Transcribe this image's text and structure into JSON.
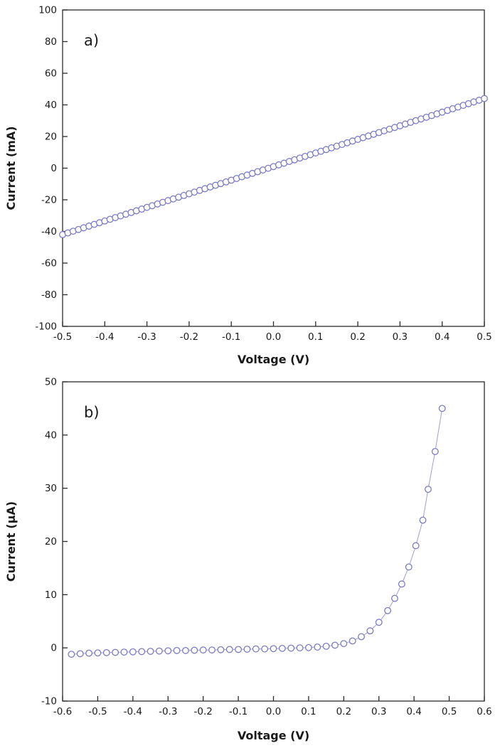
{
  "page": {
    "background": "#ffffff"
  },
  "chart_data": [
    {
      "id": "chart-a",
      "type": "scatter",
      "panel_label": "a)",
      "xlabel": "Voltage (V)",
      "ylabel": "Current (mA)",
      "xlim": [
        -0.5,
        0.5
      ],
      "ylim": [
        -100,
        100
      ],
      "grid": false,
      "legend": "none",
      "axis_color": "#2b2b2b",
      "text_color": "#1a1a1a",
      "marker_color": "#7b7bc4",
      "line_color": "#9e9ed6",
      "xticks": [
        -0.5,
        -0.4,
        -0.3,
        -0.2,
        -0.1,
        0,
        0.1,
        0.2,
        0.3,
        0.4,
        0.5
      ],
      "xtick_labels": [
        "-0.5",
        "-0.4",
        "-0.3",
        "-0.2",
        "-0.1",
        "0.0",
        "0.1",
        "0.2",
        "0.3",
        "0.4",
        "0.5"
      ],
      "yticks": [
        -100,
        -80,
        -60,
        -40,
        -20,
        0,
        20,
        40,
        60,
        80,
        100
      ],
      "ytick_labels": [
        "-100",
        "-80",
        "-60",
        "-40",
        "-20",
        "0",
        "20",
        "40",
        "60",
        "80",
        "100"
      ],
      "x": [
        -0.5,
        -0.4875,
        -0.475,
        -0.4625,
        -0.45,
        -0.4375,
        -0.425,
        -0.4125,
        -0.4,
        -0.3875,
        -0.375,
        -0.3625,
        -0.35,
        -0.3375,
        -0.325,
        -0.3125,
        -0.3,
        -0.2875,
        -0.275,
        -0.2625,
        -0.25,
        -0.2375,
        -0.225,
        -0.2125,
        -0.2,
        -0.1875,
        -0.175,
        -0.1625,
        -0.15,
        -0.1375,
        -0.125,
        -0.1125,
        -0.1,
        -0.0875,
        -0.075,
        -0.0625,
        -0.05,
        -0.0375,
        -0.025,
        -0.0125,
        0,
        0.0125,
        0.025,
        0.0375,
        0.05,
        0.0625,
        0.075,
        0.0875,
        0.1,
        0.1125,
        0.125,
        0.1375,
        0.15,
        0.1625,
        0.175,
        0.1875,
        0.2,
        0.2125,
        0.225,
        0.2375,
        0.25,
        0.2625,
        0.275,
        0.2875,
        0.3,
        0.3125,
        0.325,
        0.3375,
        0.35,
        0.3625,
        0.375,
        0.3875,
        0.4,
        0.4125,
        0.425,
        0.4375,
        0.45,
        0.4625,
        0.475,
        0.4875,
        0.5
      ],
      "y": [
        -42,
        -40.93,
        -39.85,
        -38.78,
        -37.7,
        -36.63,
        -35.55,
        -34.48,
        -33.4,
        -32.33,
        -31.25,
        -30.18,
        -29.1,
        -28.03,
        -26.95,
        -25.88,
        -24.8,
        -23.73,
        -22.65,
        -21.58,
        -20.5,
        -19.43,
        -18.35,
        -17.28,
        -16.2,
        -15.13,
        -14.05,
        -12.98,
        -11.9,
        -10.83,
        -9.75,
        -8.68,
        -7.6,
        -6.53,
        -5.45,
        -4.38,
        -3.3,
        -2.23,
        -1.15,
        -0.08,
        1,
        2.08,
        3.15,
        4.23,
        5.3,
        6.38,
        7.45,
        8.53,
        9.6,
        10.68,
        11.75,
        12.83,
        13.9,
        14.98,
        16.05,
        17.13,
        18.2,
        19.28,
        20.35,
        21.43,
        22.5,
        23.58,
        24.65,
        25.73,
        26.8,
        27.88,
        28.95,
        30.03,
        31.1,
        32.18,
        33.25,
        34.33,
        35.4,
        36.48,
        37.55,
        38.63,
        39.7,
        40.78,
        41.85,
        42.93,
        44
      ]
    },
    {
      "id": "chart-b",
      "type": "scatter",
      "panel_label": "b)",
      "xlabel": "Voltage (V)",
      "ylabel": "Current (µA)",
      "xlim": [
        -0.6,
        0.6
      ],
      "ylim": [
        -10,
        50
      ],
      "grid": false,
      "legend": "none",
      "axis_color": "#2b2b2b",
      "text_color": "#1a1a1a",
      "marker_color": "#7b7bc4",
      "line_color": "#9e9ed6",
      "xticks": [
        -0.6,
        -0.5,
        -0.4,
        -0.3,
        -0.2,
        -0.1,
        0,
        0.1,
        0.2,
        0.3,
        0.4,
        0.5,
        0.6
      ],
      "xtick_labels": [
        "-0.6",
        "-0.5",
        "-0.4",
        "-0.3",
        "-0.2",
        "-0.1",
        "0.0",
        "0.1",
        "0.2",
        "0.3",
        "0.4",
        "0.5",
        "0.6"
      ],
      "yticks": [
        -10,
        0,
        10,
        20,
        30,
        40,
        50
      ],
      "ytick_labels": [
        "-10",
        "0",
        "10",
        "20",
        "30",
        "40",
        "50"
      ],
      "x": [
        -0.575,
        -0.55,
        -0.525,
        -0.5,
        -0.475,
        -0.45,
        -0.425,
        -0.4,
        -0.375,
        -0.35,
        -0.325,
        -0.3,
        -0.275,
        -0.25,
        -0.225,
        -0.2,
        -0.175,
        -0.15,
        -0.125,
        -0.1,
        -0.075,
        -0.05,
        -0.025,
        0,
        0.025,
        0.05,
        0.075,
        0.1,
        0.125,
        0.15,
        0.175,
        0.2,
        0.225,
        0.25,
        0.275,
        0.3,
        0.325,
        0.345,
        0.365,
        0.385,
        0.405,
        0.425,
        0.44,
        0.46,
        0.48
      ],
      "y": [
        -1.2,
        -1.1,
        -1.0,
        -0.95,
        -0.9,
        -0.85,
        -0.8,
        -0.75,
        -0.7,
        -0.65,
        -0.6,
        -0.55,
        -0.5,
        -0.5,
        -0.45,
        -0.4,
        -0.4,
        -0.35,
        -0.3,
        -0.3,
        -0.25,
        -0.2,
        -0.2,
        -0.15,
        -0.1,
        -0.05,
        0,
        0.05,
        0.15,
        0.3,
        0.5,
        0.8,
        1.3,
        2.1,
        3.2,
        4.8,
        7.0,
        9.3,
        12.0,
        15.2,
        19.2,
        24.0,
        29.8,
        36.9,
        45.0
      ]
    }
  ]
}
